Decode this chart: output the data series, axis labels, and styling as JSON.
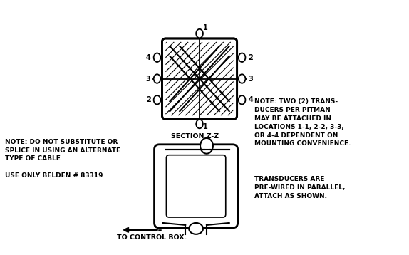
{
  "bg_color": "#ffffff",
  "line_color": "#000000",
  "note_left_line1": "NOTE: DO NOT SUBSTITUTE OR",
  "note_left_line2": "SPLICE IN USING AN ALTERNATE",
  "note_left_line3": "TYPE OF CABLE",
  "note_left_line4": "USE ONLY BELDEN # 83319",
  "note_right_line1": "NOTE: TWO (2) TRANS-",
  "note_right_line2": "DUCERS PER PITMAN",
  "note_right_line3": "MAY BE ATTACHED IN",
  "note_right_line4": "LOCATIONS 1-1, 2-2, 3-3,",
  "note_right_line5": "OR 4-4 DEPENDENT ON",
  "note_right_line6": "MOUNTING CONVENIENCE.",
  "note_bottom_right_line1": "TRANSDUCERS ARE",
  "note_bottom_right_line2": "PRE-WIRED IN PARALLEL,",
  "note_bottom_right_line3": "ATTACH AS SHOWN.",
  "section_label": "SECTION Z-Z",
  "bottom_label": "TO CONTROL BOX.",
  "font_size_notes": 6.5,
  "font_size_labels": 6.8,
  "font_size_numbers": 7.0
}
